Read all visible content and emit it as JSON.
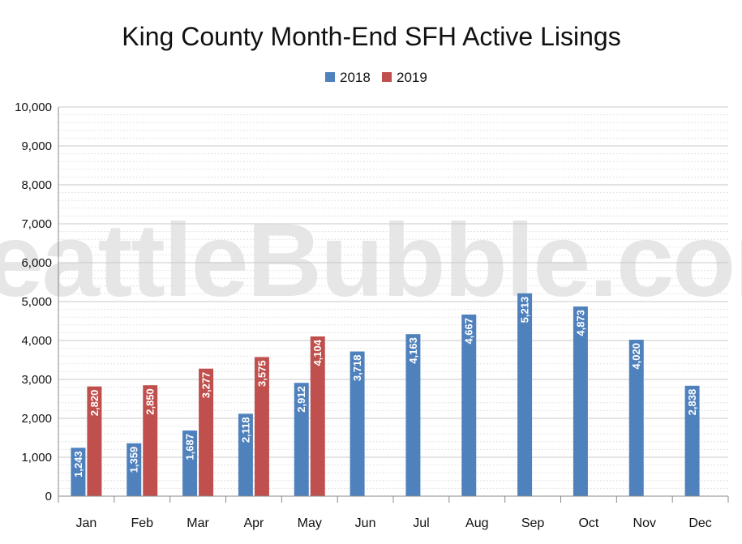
{
  "watermark": "SeattleBubble.com",
  "colors": {
    "2018": "#4f81bd",
    "2019": "#c0504d",
    "grid": "#c8c8c8",
    "minor_grid": "#e3e3e3",
    "axis": "#888888"
  },
  "chart_data": {
    "type": "bar",
    "title": "King County Month-End SFH Active Lisings",
    "xlabel": "",
    "ylabel": "",
    "ylim": [
      0,
      10000
    ],
    "yticks": [
      "0",
      "1,000",
      "2,000",
      "3,000",
      "4,000",
      "5,000",
      "6,000",
      "7,000",
      "8,000",
      "9,000",
      "10,000"
    ],
    "grid": true,
    "legend_position": "top-center",
    "categories": [
      "Jan",
      "Feb",
      "Mar",
      "Apr",
      "May",
      "Jun",
      "Jul",
      "Aug",
      "Sep",
      "Oct",
      "Nov",
      "Dec"
    ],
    "series": [
      {
        "name": "2018",
        "values": [
          1243,
          1359,
          1687,
          2118,
          2912,
          3718,
          4163,
          4667,
          5213,
          4873,
          4020,
          2838
        ],
        "labels": [
          "1,243",
          "1,359",
          "1,687",
          "2,118",
          "2,912",
          "3,718",
          "4,163",
          "4,667",
          "5,213",
          "4,873",
          "4,020",
          "2,838"
        ]
      },
      {
        "name": "2019",
        "values": [
          2820,
          2850,
          3277,
          3575,
          4104,
          null,
          null,
          null,
          null,
          null,
          null,
          null
        ],
        "labels": [
          "2,820",
          "2,850",
          "3,277",
          "3,575",
          "4,104",
          null,
          null,
          null,
          null,
          null,
          null,
          null
        ]
      }
    ]
  }
}
